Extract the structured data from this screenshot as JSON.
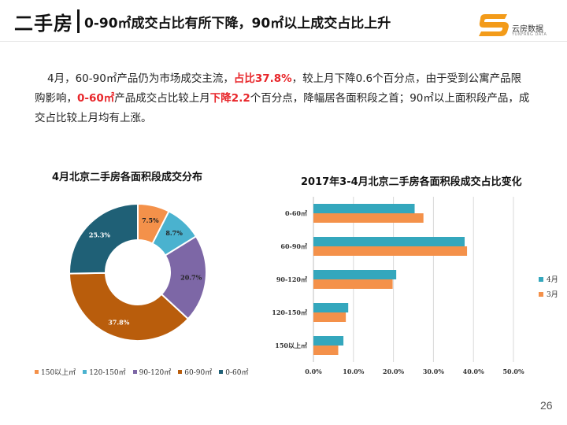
{
  "header": {
    "main_title": "二手房",
    "subtitle": "0-90㎡成交占比有所下降，90㎡以上成交占比上升"
  },
  "logo": {
    "text": "云房数据",
    "sub": "YUNFANG DATA",
    "color": "#f39b19"
  },
  "paragraph": {
    "p1": "4月，60-90㎡产品仍为市场成交主流，",
    "h1": "占比37.8%",
    "p2": "，较上月下降0.6个百分点，由于受到公寓产品限购影响，",
    "h2": "0-60㎡",
    "p3": "产品成交占比较上月",
    "h3": "下降2.2",
    "p4": "个百分点，降幅居各面积段之首；90㎡以上面积段产品，成交占比较上月均有上涨。"
  },
  "chart_data": [
    {
      "type": "pie",
      "title": "4月北京二手房各面积段成交分布",
      "categories": [
        "0-60㎡",
        "60-90㎡",
        "90-120㎡",
        "120-150㎡",
        "150以上㎡"
      ],
      "values": [
        25.3,
        37.8,
        20.7,
        8.7,
        7.5
      ],
      "labels": [
        "25.3%",
        "37.8%",
        "20.7%",
        "8.7%",
        "7.5%"
      ],
      "colors": [
        "#1f6076",
        "#b95d0c",
        "#7d67a6",
        "#4ab2cf",
        "#f4914a"
      ],
      "legend_order": [
        "150以上㎡",
        "120-150㎡",
        "90-120㎡",
        "60-90㎡",
        "0-60㎡"
      ],
      "legend_colors": [
        "#f4914a",
        "#4ab2cf",
        "#7d67a6",
        "#b95d0c",
        "#1f6076"
      ]
    },
    {
      "type": "bar",
      "orientation": "horizontal",
      "title": "2017年3-4月北京二手房各面积段成交占比变化",
      "categories": [
        "0-60㎡",
        "60-90㎡",
        "90-120㎡",
        "120-150㎡",
        "150以上㎡"
      ],
      "series": [
        {
          "name": "4月",
          "color": "#34a7bd",
          "values": [
            25.3,
            37.8,
            20.7,
            8.7,
            7.5
          ]
        },
        {
          "name": "3月",
          "color": "#f4914a",
          "values": [
            27.5,
            38.4,
            19.8,
            8.1,
            6.2
          ]
        }
      ],
      "xlim": [
        0,
        50
      ],
      "ticks": [
        "0.0%",
        "10.0%",
        "20.0%",
        "30.0%",
        "40.0%",
        "50.0%"
      ],
      "grid": true
    }
  ],
  "page_number": "26"
}
